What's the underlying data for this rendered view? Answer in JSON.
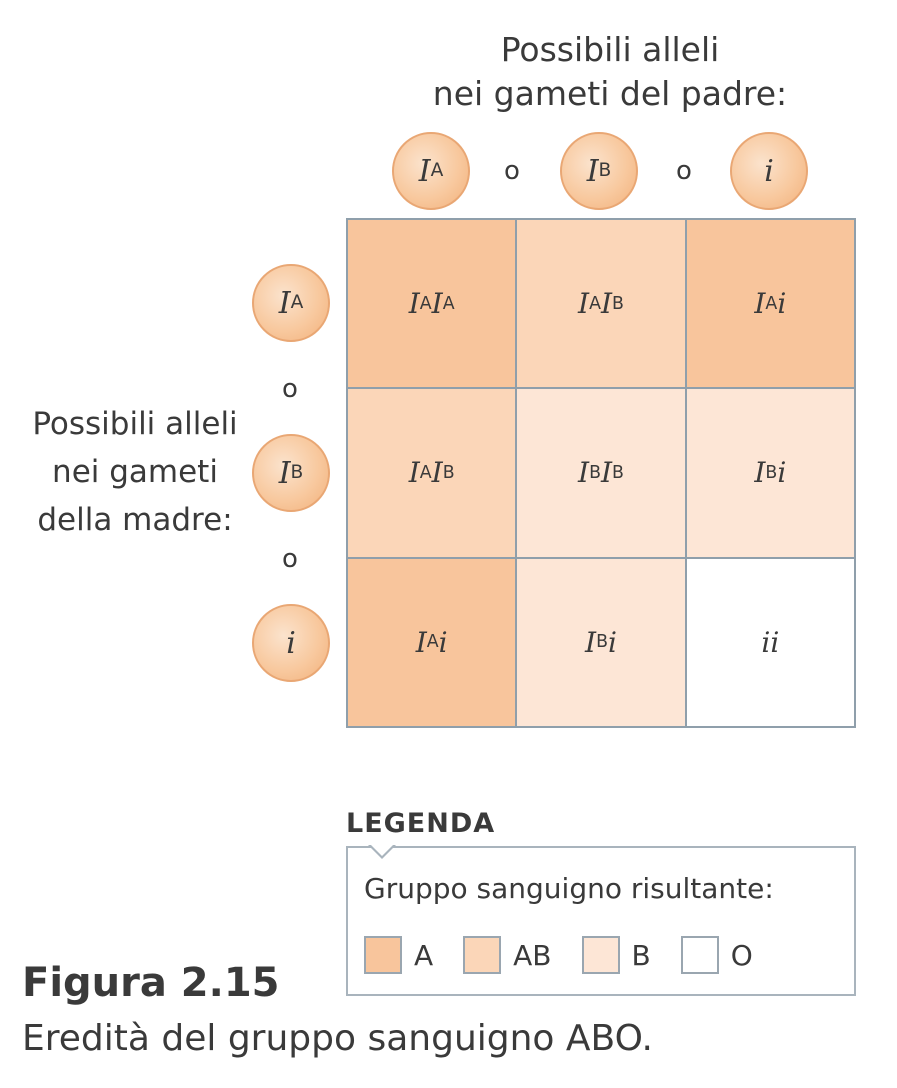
{
  "father_label_line1": "Possibili alleli",
  "father_label_line2": "nei gameti del padre:",
  "mother_label_line1": "Possibili alleli",
  "mother_label_line2": "nei gameti",
  "mother_label_line3": "della madre:",
  "separator": "o",
  "alleles": {
    "father": [
      {
        "base": "I",
        "sup": "A"
      },
      {
        "base": "I",
        "sup": "B"
      },
      {
        "base": "i",
        "sup": ""
      }
    ],
    "mother": [
      {
        "base": "I",
        "sup": "A"
      },
      {
        "base": "I",
        "sup": "B"
      },
      {
        "base": "i",
        "sup": ""
      }
    ]
  },
  "cells": [
    [
      {
        "parts": [
          {
            "base": "I",
            "sup": "A"
          },
          {
            "base": "I",
            "sup": "A"
          }
        ],
        "group": "A"
      },
      {
        "parts": [
          {
            "base": "I",
            "sup": "A"
          },
          {
            "base": "I",
            "sup": "B"
          }
        ],
        "group": "AB"
      },
      {
        "parts": [
          {
            "base": "I",
            "sup": "A"
          },
          {
            "base": "i",
            "sup": ""
          }
        ],
        "group": "A"
      }
    ],
    [
      {
        "parts": [
          {
            "base": "I",
            "sup": "A"
          },
          {
            "base": "I",
            "sup": "B"
          }
        ],
        "group": "AB"
      },
      {
        "parts": [
          {
            "base": "I",
            "sup": "B"
          },
          {
            "base": "I",
            "sup": "B"
          }
        ],
        "group": "B"
      },
      {
        "parts": [
          {
            "base": "I",
            "sup": "B"
          },
          {
            "base": "i",
            "sup": ""
          }
        ],
        "group": "B"
      }
    ],
    [
      {
        "parts": [
          {
            "base": "I",
            "sup": "A"
          },
          {
            "base": "i",
            "sup": ""
          }
        ],
        "group": "A"
      },
      {
        "parts": [
          {
            "base": "I",
            "sup": "B"
          },
          {
            "base": "i",
            "sup": ""
          }
        ],
        "group": "B"
      },
      {
        "parts": [
          {
            "base": "i",
            "sup": ""
          },
          {
            "base": "i",
            "sup": ""
          }
        ],
        "group": "O"
      }
    ]
  ],
  "colors": {
    "A": "#f8c59c",
    "AB": "#fbd6b8",
    "B": "#fde6d6",
    "O": "#ffffff"
  },
  "legend": {
    "title": "LEGENDA",
    "subtitle": "Gruppo sanguigno risultante:",
    "items": [
      "A",
      "AB",
      "B",
      "O"
    ]
  },
  "figure_title": "Figura 2.15",
  "figure_caption": "Eredità del gruppo sanguigno ABO."
}
